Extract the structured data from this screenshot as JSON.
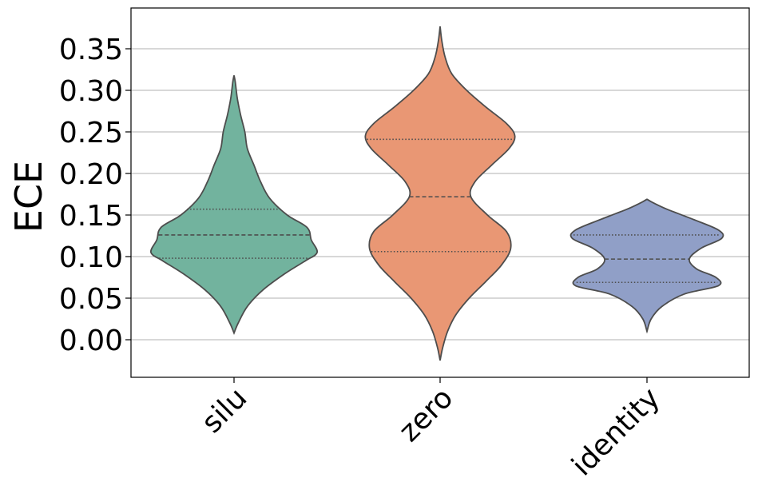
{
  "chart_data": {
    "type": "violin",
    "title": "",
    "xlabel": "",
    "ylabel": "ECE",
    "ylim": [
      -0.045,
      0.395
    ],
    "yticks": [
      "0.00",
      "0.05",
      "0.10",
      "0.15",
      "0.20",
      "0.25",
      "0.30",
      "0.35"
    ],
    "grid": "y",
    "categories": [
      "silu",
      "zero",
      "identity"
    ],
    "series": [
      {
        "category": "silu",
        "color": "#72b39e",
        "min": 0.008,
        "q1": 0.098,
        "median": 0.126,
        "q3": 0.157,
        "max": 0.318,
        "density": [
          [
            0.008,
            0.0
          ],
          [
            0.02,
            0.05
          ],
          [
            0.04,
            0.16
          ],
          [
            0.06,
            0.35
          ],
          [
            0.08,
            0.62
          ],
          [
            0.095,
            0.86
          ],
          [
            0.105,
            1.0
          ],
          [
            0.12,
            0.93
          ],
          [
            0.135,
            0.88
          ],
          [
            0.15,
            0.64
          ],
          [
            0.17,
            0.43
          ],
          [
            0.19,
            0.32
          ],
          [
            0.21,
            0.24
          ],
          [
            0.23,
            0.16
          ],
          [
            0.25,
            0.13
          ],
          [
            0.27,
            0.08
          ],
          [
            0.29,
            0.04
          ],
          [
            0.31,
            0.015
          ],
          [
            0.318,
            0.0
          ]
        ]
      },
      {
        "category": "zero",
        "color": "#e99774",
        "min": -0.025,
        "q1": 0.106,
        "median": 0.172,
        "q3": 0.241,
        "max": 0.377,
        "density": [
          [
            -0.025,
            0.0
          ],
          [
            -0.01,
            0.03
          ],
          [
            0.01,
            0.09
          ],
          [
            0.03,
            0.19
          ],
          [
            0.05,
            0.35
          ],
          [
            0.07,
            0.55
          ],
          [
            0.09,
            0.74
          ],
          [
            0.11,
            0.85
          ],
          [
            0.13,
            0.8
          ],
          [
            0.15,
            0.57
          ],
          [
            0.172,
            0.37
          ],
          [
            0.19,
            0.42
          ],
          [
            0.21,
            0.62
          ],
          [
            0.23,
            0.83
          ],
          [
            0.245,
            0.9
          ],
          [
            0.26,
            0.8
          ],
          [
            0.28,
            0.55
          ],
          [
            0.3,
            0.32
          ],
          [
            0.32,
            0.14
          ],
          [
            0.34,
            0.06
          ],
          [
            0.36,
            0.02
          ],
          [
            0.377,
            0.0
          ]
        ]
      },
      {
        "category": "identity",
        "color": "#909fc7",
        "min": 0.01,
        "q1": 0.069,
        "median": 0.097,
        "q3": 0.126,
        "max": 0.169,
        "density": [
          [
            0.01,
            0.0
          ],
          [
            0.025,
            0.05
          ],
          [
            0.04,
            0.18
          ],
          [
            0.055,
            0.45
          ],
          [
            0.065,
            0.86
          ],
          [
            0.075,
            0.83
          ],
          [
            0.085,
            0.6
          ],
          [
            0.097,
            0.51
          ],
          [
            0.11,
            0.65
          ],
          [
            0.122,
            0.9
          ],
          [
            0.132,
            0.86
          ],
          [
            0.145,
            0.55
          ],
          [
            0.157,
            0.24
          ],
          [
            0.165,
            0.07
          ],
          [
            0.169,
            0.0
          ]
        ]
      }
    ]
  }
}
